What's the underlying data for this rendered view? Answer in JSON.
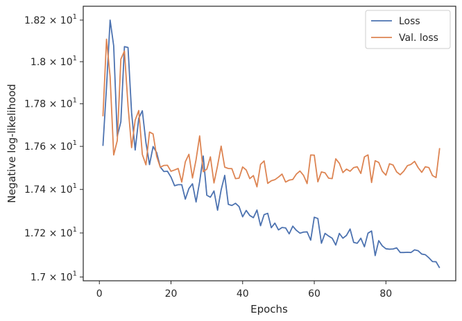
{
  "chart_data": {
    "type": "line",
    "xlabel": "Epochs",
    "ylabel": "Negative log-likelihood",
    "xlim": [
      -4.5,
      99.5
    ],
    "ylim": [
      16.983,
      18.267
    ],
    "x_ticks": [
      0,
      20,
      40,
      60,
      80
    ],
    "y_ticks": [
      17.0,
      17.2,
      17.4,
      17.6,
      17.8,
      18.0,
      18.2
    ],
    "y_tick_labels": [
      {
        "value": 17.0,
        "mantissa": "1.7",
        "exponent": "1"
      },
      {
        "value": 17.2,
        "mantissa": "1.72",
        "exponent": "1"
      },
      {
        "value": 17.4,
        "mantissa": "1.74",
        "exponent": "1"
      },
      {
        "value": 17.6,
        "mantissa": "1.76",
        "exponent": "1"
      },
      {
        "value": 17.8,
        "mantissa": "1.78",
        "exponent": "1"
      },
      {
        "value": 18.0,
        "mantissa": "1.8",
        "exponent": "1"
      },
      {
        "value": 18.2,
        "mantissa": "1.82",
        "exponent": "1"
      }
    ],
    "y_scale": "log",
    "legend_position": "top-right",
    "grid": false,
    "series": [
      {
        "name": "Loss",
        "color": "#4c72b0",
        "x": [
          1,
          2,
          3,
          4,
          5,
          6,
          7,
          8,
          9,
          10,
          11,
          12,
          13,
          14,
          15,
          16,
          17,
          18,
          19,
          20,
          21,
          22,
          23,
          24,
          25,
          26,
          27,
          28,
          29,
          30,
          31,
          32,
          33,
          34,
          35,
          36,
          37,
          38,
          39,
          40,
          41,
          42,
          43,
          44,
          45,
          46,
          47,
          48,
          49,
          50,
          51,
          52,
          53,
          54,
          55,
          56,
          57,
          58,
          59,
          60,
          61,
          62,
          63,
          64,
          65,
          66,
          67,
          68,
          69,
          70,
          71,
          72,
          73,
          74,
          75,
          76,
          77,
          78,
          79,
          80,
          81,
          82,
          83,
          84,
          85,
          86,
          87,
          88,
          89,
          90,
          91,
          92,
          93,
          94,
          95
        ],
        "values": [
          17.602,
          17.88,
          18.2,
          18.076,
          17.647,
          17.715,
          18.072,
          18.068,
          17.757,
          17.583,
          17.732,
          17.767,
          17.618,
          17.515,
          17.599,
          17.571,
          17.504,
          17.483,
          17.484,
          17.457,
          17.417,
          17.422,
          17.422,
          17.355,
          17.404,
          17.426,
          17.342,
          17.436,
          17.555,
          17.373,
          17.364,
          17.393,
          17.304,
          17.398,
          17.465,
          17.331,
          17.326,
          17.336,
          17.321,
          17.274,
          17.303,
          17.28,
          17.27,
          17.305,
          17.233,
          17.284,
          17.29,
          17.224,
          17.245,
          17.214,
          17.225,
          17.223,
          17.196,
          17.231,
          17.212,
          17.199,
          17.204,
          17.205,
          17.167,
          17.272,
          17.266,
          17.153,
          17.198,
          17.186,
          17.176,
          17.145,
          17.198,
          17.176,
          17.189,
          17.218,
          17.157,
          17.153,
          17.176,
          17.137,
          17.199,
          17.209,
          17.097,
          17.165,
          17.141,
          17.128,
          17.126,
          17.127,
          17.132,
          17.111,
          17.111,
          17.112,
          17.111,
          17.123,
          17.119,
          17.104,
          17.101,
          17.087,
          17.07,
          17.069,
          17.041
        ]
      },
      {
        "name": "Val. loss",
        "color": "#dd8452",
        "x": [
          1,
          2,
          3,
          4,
          5,
          6,
          7,
          8,
          9,
          10,
          11,
          12,
          13,
          14,
          15,
          16,
          17,
          18,
          19,
          20,
          21,
          22,
          23,
          24,
          25,
          26,
          27,
          28,
          29,
          30,
          31,
          32,
          33,
          34,
          35,
          36,
          37,
          38,
          39,
          40,
          41,
          42,
          43,
          44,
          45,
          46,
          47,
          48,
          49,
          50,
          51,
          52,
          53,
          54,
          55,
          56,
          57,
          58,
          59,
          60,
          61,
          62,
          63,
          64,
          65,
          66,
          67,
          68,
          69,
          70,
          71,
          72,
          73,
          74,
          75,
          76,
          77,
          78,
          79,
          80,
          81,
          82,
          83,
          84,
          85,
          86,
          87,
          88,
          89,
          90,
          91,
          92,
          93,
          94,
          95
        ],
        "values": [
          17.741,
          18.108,
          17.929,
          17.56,
          17.627,
          18.012,
          18.051,
          17.791,
          17.594,
          17.723,
          17.768,
          17.562,
          17.514,
          17.667,
          17.658,
          17.553,
          17.503,
          17.511,
          17.512,
          17.484,
          17.49,
          17.497,
          17.434,
          17.528,
          17.563,
          17.453,
          17.538,
          17.649,
          17.482,
          17.494,
          17.551,
          17.43,
          17.51,
          17.601,
          17.503,
          17.497,
          17.496,
          17.45,
          17.452,
          17.504,
          17.49,
          17.45,
          17.464,
          17.412,
          17.516,
          17.532,
          17.428,
          17.44,
          17.445,
          17.457,
          17.471,
          17.434,
          17.443,
          17.446,
          17.471,
          17.485,
          17.465,
          17.427,
          17.56,
          17.559,
          17.435,
          17.481,
          17.477,
          17.452,
          17.45,
          17.542,
          17.521,
          17.478,
          17.494,
          17.484,
          17.501,
          17.505,
          17.474,
          17.551,
          17.56,
          17.432,
          17.533,
          17.525,
          17.484,
          17.466,
          17.519,
          17.513,
          17.481,
          17.468,
          17.485,
          17.51,
          17.516,
          17.53,
          17.501,
          17.479,
          17.505,
          17.501,
          17.464,
          17.455,
          17.592
        ]
      }
    ]
  }
}
